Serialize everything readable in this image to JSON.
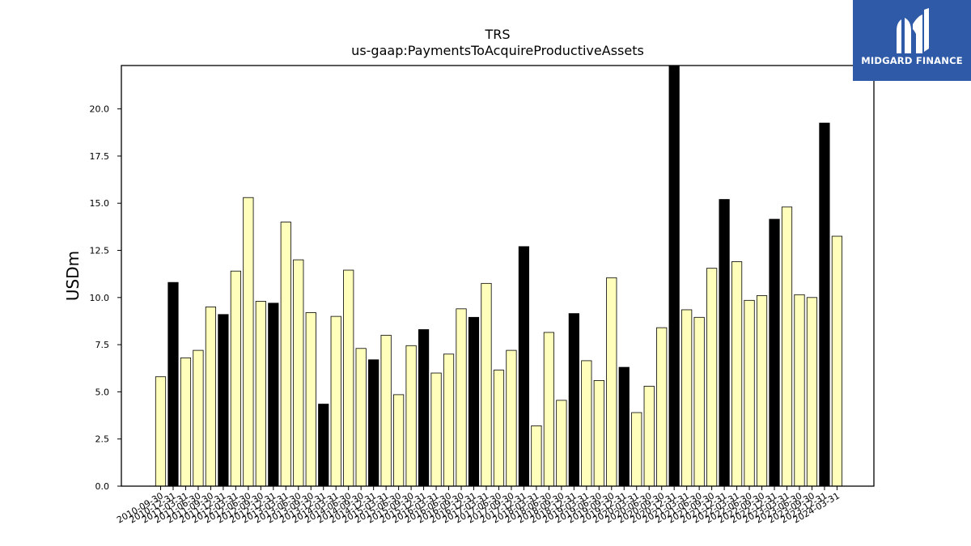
{
  "logo": {
    "text": "MIDGARD FINANCE",
    "bg_color": "#2f5aa8"
  },
  "chart_data": {
    "type": "bar",
    "title": "TRS",
    "subtitle": "us-gaap:PaymentsToAcquireProductiveAssets",
    "ylabel": "USDm",
    "xlabel": "",
    "ylim": [
      0,
      22.3
    ],
    "yticks": [
      "0.0",
      "2.5",
      "5.0",
      "7.5",
      "10.0",
      "12.5",
      "15.0",
      "17.5",
      "20.0"
    ],
    "colors": {
      "quarter": "#ffffbb",
      "fiscal_year": "#000000",
      "edge": "#000000"
    },
    "categories": [
      "2010-09-30",
      "2010-12-31",
      "2011-03-31",
      "2011-06-30",
      "2011-09-30",
      "2011-12-31",
      "2012-03-31",
      "2012-06-30",
      "2012-09-30",
      "2012-12-31",
      "2013-03-31",
      "2013-06-30",
      "2013-09-30",
      "2013-12-31",
      "2014-03-31",
      "2014-06-30",
      "2014-09-30",
      "2014-12-31",
      "2015-03-31",
      "2015-06-30",
      "2015-09-30",
      "2015-12-31",
      "2016-03-31",
      "2016-06-30",
      "2016-09-30",
      "2016-12-31",
      "2017-03-31",
      "2017-06-30",
      "2017-09-30",
      "2017-12-31",
      "2018-03-31",
      "2018-06-30",
      "2018-09-30",
      "2018-12-31",
      "2019-03-31",
      "2019-06-30",
      "2019-09-30",
      "2019-12-31",
      "2020-03-31",
      "2020-06-30",
      "2020-09-30",
      "2020-12-31",
      "2021-03-31",
      "2021-06-30",
      "2021-09-30",
      "2021-12-31",
      "2022-03-31",
      "2022-06-30",
      "2022-09-30",
      "2022-12-31",
      "2023-03-31",
      "2023-06-30",
      "2023-09-30",
      "2023-12-31",
      "2024-03-31"
    ],
    "values": [
      5.8,
      10.8,
      6.8,
      7.2,
      9.5,
      9.1,
      11.4,
      15.3,
      9.8,
      9.7,
      14.0,
      12.0,
      9.2,
      4.35,
      9.0,
      11.45,
      7.3,
      6.7,
      8.0,
      4.85,
      7.45,
      8.3,
      6.0,
      7.0,
      9.4,
      8.95,
      10.75,
      6.15,
      7.2,
      12.7,
      3.2,
      8.15,
      4.55,
      9.15,
      6.65,
      5.6,
      11.05,
      6.3,
      3.9,
      5.3,
      8.4,
      22.3,
      9.35,
      8.95,
      11.55,
      15.2,
      11.9,
      9.85,
      10.1,
      14.15,
      14.8,
      10.15,
      10.0,
      19.25,
      13.25
    ],
    "fiscal_year_end": [
      false,
      true,
      false,
      false,
      false,
      true,
      false,
      false,
      false,
      true,
      false,
      false,
      false,
      true,
      false,
      false,
      false,
      true,
      false,
      false,
      false,
      true,
      false,
      false,
      false,
      true,
      false,
      false,
      false,
      true,
      false,
      false,
      false,
      true,
      false,
      false,
      false,
      true,
      false,
      false,
      false,
      true,
      false,
      false,
      false,
      true,
      false,
      false,
      false,
      true,
      false,
      false,
      false,
      true,
      false
    ]
  }
}
